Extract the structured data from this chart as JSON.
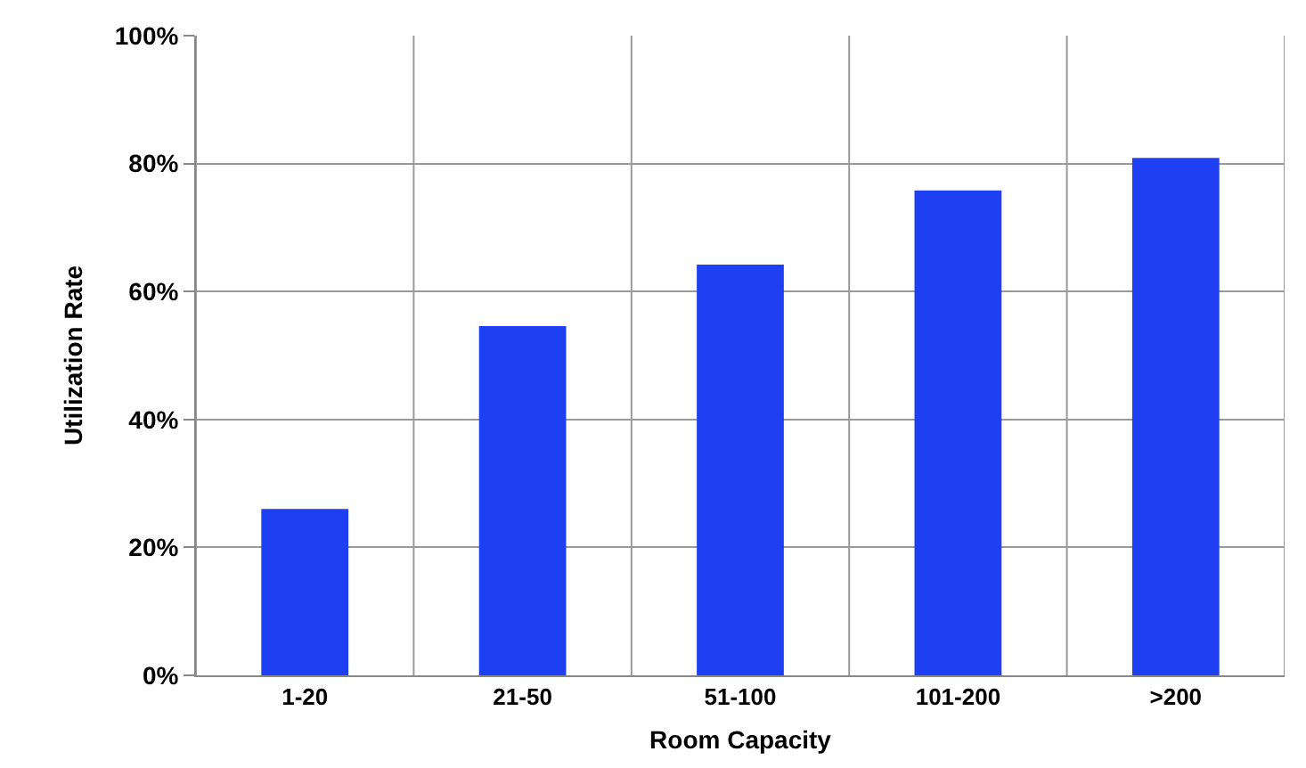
{
  "chart_data": {
    "type": "bar",
    "xlabel": "Room Capacity",
    "ylabel": "Utilization Rate",
    "categories": [
      "1-20",
      "21-50",
      "51-100",
      "101-200",
      ">200"
    ],
    "values": [
      0.26,
      0.546,
      0.642,
      0.758,
      0.809
    ],
    "color": "#1f3ff2",
    "ylim": [
      0,
      1
    ],
    "yticks": [
      {
        "value": 0,
        "label": "0%"
      },
      {
        "value": 0.2,
        "label": "20%"
      },
      {
        "value": 0.4,
        "label": "40%"
      },
      {
        "value": 0.6,
        "label": "60%"
      },
      {
        "value": 0.8,
        "label": "80%"
      },
      {
        "value": 1,
        "label": "100%"
      }
    ],
    "grid": true,
    "legend": false
  }
}
